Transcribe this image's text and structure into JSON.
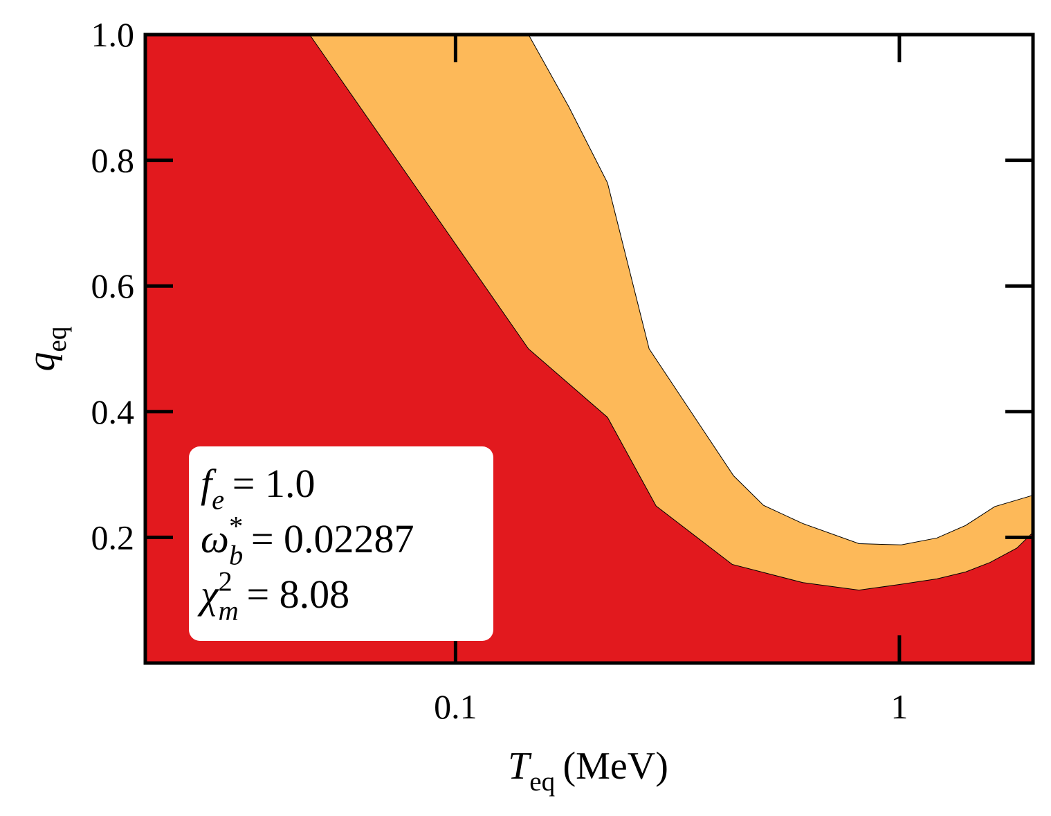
{
  "chart_data": {
    "type": "area",
    "xlabel": {
      "symbol": "T",
      "sub": "eq",
      "text": "(MeV)"
    },
    "ylabel": {
      "symbol": "q",
      "sub": "eq"
    },
    "xscale": "log",
    "xlim": [
      0.02,
      2
    ],
    "ylim": [
      0,
      1
    ],
    "xticks": [
      0.1,
      1
    ],
    "yticks": [
      0.2,
      0.4,
      0.6,
      0.8,
      {
        "value": 1,
        "label": "1.0"
      }
    ],
    "series": [
      {
        "color": "#fdb959",
        "x": [
          0.146,
          0.18,
          0.22,
          0.273,
          0.423,
          0.494,
          0.606,
          0.811,
          1.01,
          1.215,
          1.41,
          1.64,
          2.0
        ],
        "values": [
          1.0,
          0.885,
          0.764,
          0.5,
          0.298,
          0.251,
          0.222,
          0.19,
          0.188,
          0.199,
          0.219,
          0.249,
          0.267
        ]
      },
      {
        "color": "#e2191e",
        "x": [
          0.0469,
          0.146,
          0.22,
          0.283,
          0.42,
          0.606,
          0.811,
          1.0,
          1.215,
          1.41,
          1.6,
          1.84,
          2.0
        ],
        "values": [
          1.0,
          0.5,
          0.391,
          0.25,
          0.157,
          0.128,
          0.116,
          0.125,
          0.134,
          0.145,
          0.16,
          0.183,
          0.208
        ]
      }
    ],
    "annotations": [
      {
        "symbol": "f",
        "sub": "e",
        "text": "= 1.0"
      },
      {
        "symbol": "ω",
        "sub": "b",
        "sup": "*",
        "text": "= 0.02287"
      },
      {
        "symbol": "χ",
        "sub": "m",
        "sup": "2",
        "text": "= 8.08"
      }
    ]
  }
}
